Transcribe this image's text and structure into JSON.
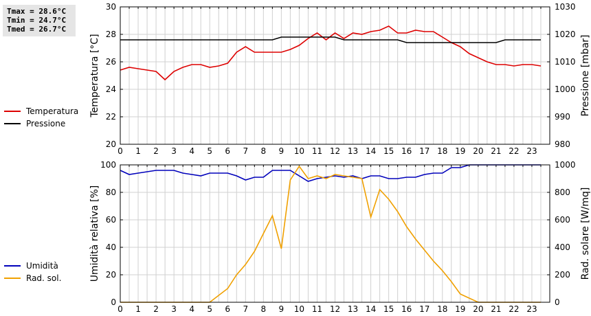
{
  "stats": {
    "tmax": "Tmax = 28.6°C",
    "tmin": "Tmin = 24.7°C",
    "tmed": "Tmed = 26.7°C"
  },
  "colors": {
    "temperature": "#dd0000",
    "pressure": "#000000",
    "humidity": "#0000bb",
    "radiation": "#f0a000",
    "grid": "#d0d0d0"
  },
  "chart_data": [
    {
      "type": "line",
      "x_ticks": [
        "0",
        "1",
        "2",
        "3",
        "4",
        "5",
        "6",
        "7",
        "8",
        "9",
        "10",
        "11",
        "12",
        "13",
        "14",
        "15",
        "16",
        "17",
        "18",
        "19",
        "20",
        "21",
        "22",
        "23"
      ],
      "xlim": [
        0,
        24
      ],
      "ylabel": "Temperatura [°C]",
      "ylim": [
        20,
        30
      ],
      "y_ticks": [
        "20",
        "22",
        "24",
        "26",
        "28",
        "30"
      ],
      "y2label": "Pressione [mbar]",
      "y2lim": [
        980,
        1030
      ],
      "y2_ticks": [
        "980",
        "990",
        "1000",
        "1010",
        "1020",
        "1030"
      ],
      "grid": true,
      "legend_position": "left",
      "series": [
        {
          "name": "Temperatura",
          "axis": "left",
          "x": [
            0,
            0.5,
            1,
            1.5,
            2,
            2.5,
            3,
            3.5,
            4,
            4.5,
            5,
            5.5,
            6,
            6.5,
            7,
            7.5,
            8,
            8.5,
            9,
            9.5,
            10,
            10.5,
            11,
            11.5,
            12,
            12.5,
            13,
            13.5,
            14,
            14.5,
            15,
            15.5,
            16,
            16.5,
            17,
            17.5,
            18,
            18.5,
            19,
            19.5,
            20,
            20.5,
            21,
            21.5,
            22,
            22.5,
            23,
            23.5
          ],
          "values": [
            25.4,
            25.6,
            25.5,
            25.4,
            25.3,
            24.7,
            25.3,
            25.6,
            25.8,
            25.8,
            25.6,
            25.7,
            25.9,
            26.7,
            27.1,
            26.7,
            26.7,
            26.7,
            26.7,
            26.9,
            27.2,
            27.7,
            28.1,
            27.6,
            28.1,
            27.7,
            28.1,
            28.0,
            28.2,
            28.3,
            28.6,
            28.1,
            28.1,
            28.3,
            28.2,
            28.2,
            27.8,
            27.4,
            27.1,
            26.6,
            26.3,
            26.0,
            25.8,
            25.8,
            25.7,
            25.8,
            25.8,
            25.7
          ]
        },
        {
          "name": "Pressione",
          "axis": "right",
          "x": [
            0,
            0.5,
            1,
            1.5,
            2,
            2.5,
            3,
            3.5,
            4,
            4.5,
            5,
            5.5,
            6,
            6.5,
            7,
            7.5,
            8,
            8.5,
            9,
            9.5,
            10,
            10.5,
            11,
            11.5,
            12,
            12.5,
            13,
            13.5,
            14,
            14.5,
            15,
            15.5,
            16,
            16.5,
            17,
            17.5,
            18,
            18.5,
            19,
            19.5,
            20,
            20.5,
            21,
            21.5,
            22,
            22.5,
            23,
            23.5
          ],
          "values": [
            1018,
            1018,
            1018,
            1018,
            1018,
            1018,
            1018,
            1018,
            1018,
            1018,
            1018,
            1018,
            1018,
            1018,
            1018,
            1018,
            1018,
            1018,
            1019,
            1019,
            1019,
            1019,
            1019,
            1019,
            1019,
            1018,
            1018,
            1018,
            1018,
            1018,
            1018,
            1018,
            1017,
            1017,
            1017,
            1017,
            1017,
            1017,
            1017,
            1017,
            1017,
            1017,
            1017,
            1018,
            1018,
            1018,
            1018,
            1018
          ]
        }
      ]
    },
    {
      "type": "line",
      "x_ticks": [
        "0",
        "1",
        "2",
        "3",
        "4",
        "5",
        "6",
        "7",
        "8",
        "9",
        "10",
        "11",
        "12",
        "13",
        "14",
        "15",
        "16",
        "17",
        "18",
        "19",
        "20",
        "21",
        "22",
        "23"
      ],
      "xlim": [
        0,
        24
      ],
      "ylabel": "Umidità relativa [%]",
      "ylim": [
        0,
        100
      ],
      "y_ticks": [
        "0",
        "20",
        "40",
        "60",
        "80",
        "100"
      ],
      "y2label": "Rad. solare [W/mq]",
      "y2lim": [
        0,
        1000
      ],
      "y2_ticks": [
        "0",
        "200",
        "400",
        "600",
        "800",
        "1000"
      ],
      "grid": true,
      "legend_position": "left",
      "series": [
        {
          "name": "Umidità",
          "axis": "left",
          "x": [
            0,
            0.5,
            1,
            1.5,
            2,
            2.5,
            3,
            3.5,
            4,
            4.5,
            5,
            5.5,
            6,
            6.5,
            7,
            7.5,
            8,
            8.5,
            9,
            9.5,
            10,
            10.5,
            11,
            11.5,
            12,
            12.5,
            13,
            13.5,
            14,
            14.5,
            15,
            15.5,
            16,
            16.5,
            17,
            17.5,
            18,
            18.5,
            19,
            19.5,
            20,
            20.5,
            21,
            21.5,
            22,
            22.5,
            23,
            23.5
          ],
          "values": [
            96,
            93,
            94,
            95,
            96,
            96,
            96,
            94,
            93,
            92,
            94,
            94,
            94,
            92,
            89,
            91,
            91,
            96,
            96,
            96,
            92,
            88,
            90,
            91,
            92,
            91,
            92,
            90,
            92,
            92,
            90,
            90,
            91,
            91,
            93,
            94,
            94,
            98,
            98,
            100,
            100,
            100,
            100,
            100,
            100,
            100,
            100,
            100
          ]
        },
        {
          "name": "Rad. sol.",
          "axis": "right",
          "x": [
            0,
            0.5,
            1,
            1.5,
            2,
            2.5,
            3,
            3.5,
            4,
            4.5,
            5,
            5.5,
            6,
            6.5,
            7,
            7.5,
            8,
            8.5,
            9,
            9.5,
            10,
            10.5,
            11,
            11.5,
            12,
            12.5,
            13,
            13.5,
            14,
            14.5,
            15,
            15.5,
            16,
            16.5,
            17,
            17.5,
            18,
            18.5,
            19,
            19.5,
            20,
            20.5,
            21,
            21.5,
            22,
            22.5,
            23,
            23.5
          ],
          "values": [
            0,
            0,
            0,
            0,
            0,
            0,
            0,
            0,
            0,
            0,
            0,
            50,
            100,
            200,
            275,
            370,
            500,
            630,
            390,
            890,
            990,
            900,
            920,
            900,
            930,
            920,
            910,
            900,
            620,
            820,
            750,
            660,
            550,
            460,
            380,
            300,
            230,
            150,
            60,
            30,
            0,
            0,
            0,
            0,
            0,
            0,
            0,
            0
          ]
        }
      ]
    }
  ]
}
